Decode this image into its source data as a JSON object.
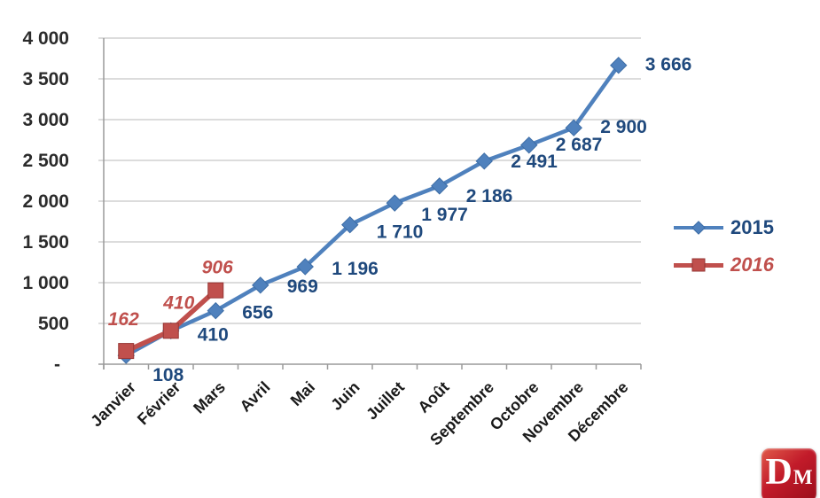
{
  "chart_data": {
    "type": "line",
    "title": "",
    "xlabel": "",
    "ylabel": "",
    "categories": [
      "Janvier",
      "Février",
      "Mars",
      "Avril",
      "Mai",
      "Juin",
      "Juillet",
      "Août",
      "Septembre",
      "Octobre",
      "Novembre",
      "Décembre"
    ],
    "series": [
      {
        "name": "2015",
        "marker": "diamond",
        "color": "#4f81bd",
        "marker_stroke": "#3d6da6",
        "label_color": "#1f497d",
        "italic": false,
        "values": [
          108,
          410,
          656,
          969,
          1196,
          1710,
          1977,
          2186,
          2491,
          2687,
          2900,
          3666
        ],
        "labels": [
          "108",
          "410",
          "656",
          "969",
          "1 196",
          "1 710",
          "1 977",
          "2 186",
          "2 491",
          "2 687",
          "2 900",
          "3 666"
        ],
        "label_dy": [
          22,
          4,
          2,
          1,
          2,
          8,
          13,
          11,
          0,
          -1,
          -1,
          -1
        ]
      },
      {
        "name": "2016",
        "marker": "square",
        "color": "#c0504d",
        "marker_stroke": "#963634",
        "label_color": "#c0504d",
        "italic": true,
        "values": [
          162,
          410,
          906
        ],
        "labels": [
          "162",
          "410",
          "906"
        ],
        "label_offsets": [
          [
            -3,
            -36
          ],
          [
            9,
            -32
          ],
          [
            2,
            -26
          ]
        ]
      }
    ],
    "ylim": [
      0,
      4000
    ],
    "ytick_interval": 500,
    "ytick_labels": [
      "-",
      "500",
      "1 000",
      "1 500",
      "2 000",
      "2 500",
      "3 000",
      "3 500",
      "4 000"
    ],
    "grid": true,
    "legend_position": "right",
    "axis_color": "#9a9a9a",
    "grid_color": "#c6c6c6",
    "tick_label_color": "#2b2b2b"
  },
  "logo": {
    "letter_main": "D",
    "letter_sub": "M"
  }
}
